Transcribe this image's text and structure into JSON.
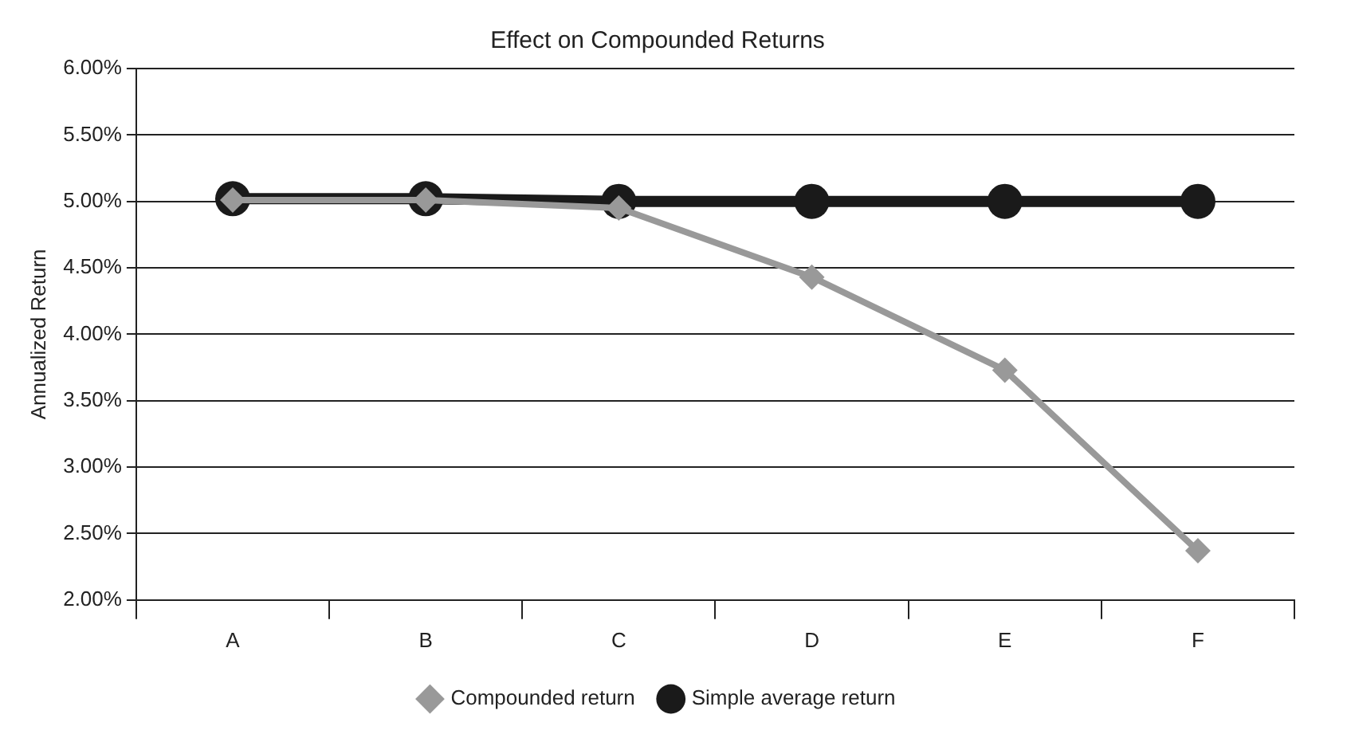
{
  "chart_data": {
    "type": "line",
    "title": "Effect on Compounded Returns",
    "ylabel": "Annualized Return",
    "categories": [
      "A",
      "B",
      "C",
      "D",
      "E",
      "F"
    ],
    "series": [
      {
        "name": "Simple average return",
        "color": "#1a1a1a",
        "marker": "circle",
        "values": [
          5.02,
          5.02,
          5.0,
          5.0,
          5.0,
          5.0
        ]
      },
      {
        "name": "Compounded return",
        "color": "#999999",
        "marker": "diamond",
        "values": [
          5.01,
          5.01,
          4.95,
          4.43,
          3.73,
          2.37
        ]
      }
    ],
    "ylim": [
      2,
      6
    ],
    "yticks": [
      {
        "value": 2,
        "label": "2.00%"
      },
      {
        "value": 2.5,
        "label": "2.50%"
      },
      {
        "value": 3,
        "label": "3.00%"
      },
      {
        "value": 3.5,
        "label": "3.50%"
      },
      {
        "value": 4,
        "label": "4.00%"
      },
      {
        "value": 4.5,
        "label": "4.50%"
      },
      {
        "value": 5,
        "label": "5.00%"
      },
      {
        "value": 5.5,
        "label": "5.50%"
      },
      {
        "value": 6,
        "label": "6.00%"
      }
    ],
    "grid": "y",
    "legend": "bottom"
  }
}
